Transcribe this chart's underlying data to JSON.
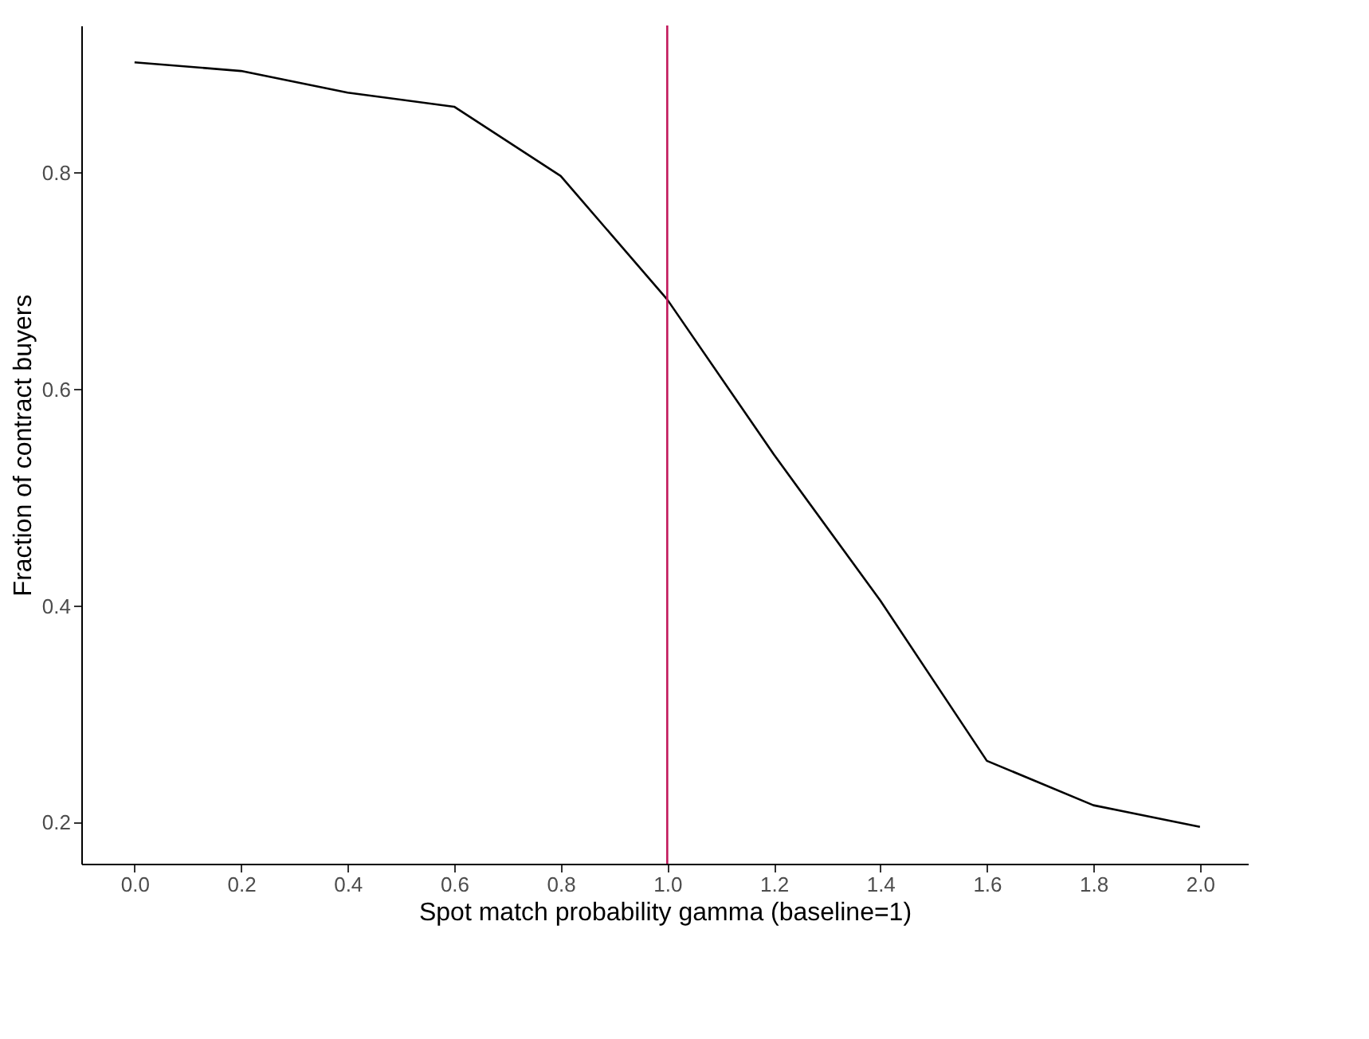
{
  "chart_data": {
    "type": "line",
    "xlabel": "Spot match probability gamma (baseline=1)",
    "ylabel": "Fraction of contract buyers",
    "x": [
      0.0,
      0.2,
      0.4,
      0.6,
      0.8,
      1.0,
      1.2,
      1.4,
      1.6,
      1.8,
      2.0
    ],
    "series": [
      {
        "color": "#000000",
        "values": [
          0.902,
          0.894,
          0.874,
          0.861,
          0.797,
          0.683,
          0.54,
          0.405,
          0.257,
          0.216,
          0.196
        ]
      }
    ],
    "xlim": [
      -0.1,
      2.09
    ],
    "ylim": [
      0.162,
      0.936
    ],
    "xticks": [
      {
        "value": 0,
        "label": "0.0"
      },
      0.2,
      0.4,
      0.6,
      0.8,
      {
        "value": 1,
        "label": "1.0"
      },
      1.2,
      1.4,
      1.6,
      1.8,
      {
        "value": 2,
        "label": "2.0"
      }
    ],
    "yticks": [
      0.2,
      0.4,
      0.6,
      0.8
    ],
    "ref_lines": [
      {
        "axis": "x",
        "value": 1.0,
        "color": "#c2185b"
      }
    ],
    "grid": false,
    "marker": "none",
    "line_style": "solid"
  }
}
